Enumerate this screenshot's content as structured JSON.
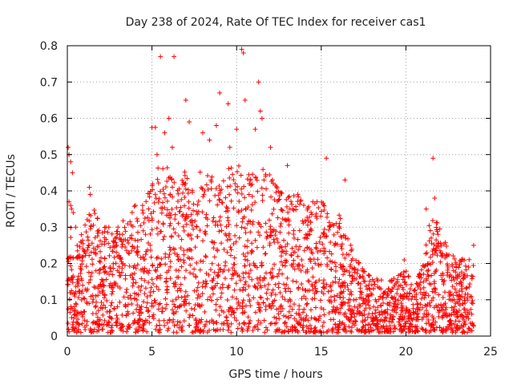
{
  "chart_data": {
    "type": "scatter",
    "title": "Day 238 of 2024, Rate Of TEC Index for receiver cas1",
    "xlabel": "GPS time / hours",
    "ylabel": "ROTI / TECUs",
    "xlim": [
      0,
      25
    ],
    "ylim": [
      0,
      0.8
    ],
    "grid": true,
    "grid_style": "dotted",
    "marker": "+",
    "color": "#ff0000",
    "x_ticks": [
      0,
      5,
      10,
      15,
      20,
      25
    ],
    "x_tick_labels": [
      "0",
      "5",
      "10",
      "15",
      "20",
      "25"
    ],
    "y_ticks": [
      0,
      0.1,
      0.2,
      0.3,
      0.4,
      0.5,
      0.6,
      0.7,
      0.8
    ],
    "y_tick_labels": [
      "0",
      "0.1",
      "0.2",
      "0.3",
      "0.4",
      "0.5",
      "0.6",
      "0.7",
      "0.8"
    ],
    "series": [
      {
        "name": "ROTI",
        "note": "dense scatter of ROTI samples; representative points plus generated density envelope",
        "x": [
          0.05,
          0.1,
          0.2,
          0.3,
          0.1,
          0.2,
          0.25,
          0.35,
          0.5,
          1.3,
          1.35,
          5.0,
          5.2,
          5.3,
          5.5,
          5.75,
          6.0,
          6.2,
          6.3,
          7.0,
          7.2,
          8.0,
          8.4,
          8.8,
          9.0,
          9.5,
          9.6,
          10.0,
          10.3,
          10.4,
          10.5,
          11.1,
          11.3,
          11.4,
          11.5,
          12.0,
          13.0,
          14.5,
          15.3,
          16.4,
          19.9,
          20.8,
          21.2,
          21.6,
          21.7,
          21.9,
          24.0
        ],
        "y": [
          0.52,
          0.5,
          0.48,
          0.45,
          0.37,
          0.36,
          0.35,
          0.34,
          0.3,
          0.41,
          0.39,
          0.575,
          0.575,
          0.5,
          0.77,
          0.56,
          0.6,
          0.52,
          0.77,
          0.65,
          0.59,
          0.56,
          0.54,
          0.58,
          0.67,
          0.64,
          0.52,
          0.57,
          0.79,
          0.78,
          0.65,
          0.57,
          0.7,
          0.62,
          0.6,
          0.52,
          0.47,
          0.37,
          0.49,
          0.43,
          0.21,
          0.14,
          0.35,
          0.49,
          0.38,
          0.28,
          0.25
        ]
      }
    ],
    "envelope": {
      "hours": [
        0,
        0.5,
        1,
        1.5,
        2,
        3,
        4,
        4.5,
        5,
        5.5,
        6,
        6.5,
        7,
        7.5,
        8,
        8.5,
        9,
        9.5,
        10,
        10.5,
        11,
        11.5,
        12,
        12.5,
        13,
        13.5,
        14,
        14.5,
        15,
        15.5,
        16,
        16.5,
        17,
        17.5,
        18,
        19,
        20,
        20.5,
        21,
        21.5,
        22,
        22.5,
        23,
        23.5,
        24
      ],
      "upper": [
        0.36,
        0.24,
        0.3,
        0.36,
        0.3,
        0.3,
        0.36,
        0.36,
        0.42,
        0.48,
        0.46,
        0.4,
        0.46,
        0.4,
        0.48,
        0.44,
        0.42,
        0.46,
        0.48,
        0.44,
        0.45,
        0.48,
        0.44,
        0.4,
        0.38,
        0.4,
        0.36,
        0.36,
        0.38,
        0.32,
        0.34,
        0.28,
        0.22,
        0.18,
        0.16,
        0.15,
        0.18,
        0.13,
        0.2,
        0.34,
        0.3,
        0.25,
        0.2,
        0.22,
        0.2
      ]
    }
  }
}
